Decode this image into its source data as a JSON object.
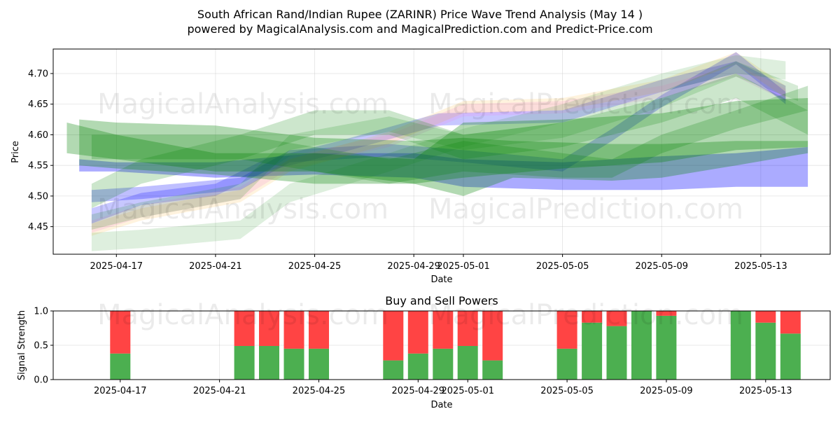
{
  "figure": {
    "title_line1": "South African Rand/Indian Rupee (ZARINR) Price Wave Trend Analysis (May 14 )",
    "title_line2": "powered by MagicalAnalysis.com and MagicalPrediction.com and Predict-Price.com",
    "watermarks": [
      "MagicalAnalysis.com",
      "MagicalPrediction.com"
    ]
  },
  "chart_data": [
    {
      "type": "area",
      "title": "",
      "xlabel": "Date",
      "ylabel": "Price",
      "xlim": [
        "2025-04-15",
        "2025-05-16"
      ],
      "ylim": [
        4.405,
        4.74
      ],
      "x_ticks": [
        "2025-04-17",
        "2025-04-21",
        "2025-04-25",
        "2025-04-29",
        "2025-05-01",
        "2025-05-05",
        "2025-05-09",
        "2025-05-13"
      ],
      "y_ticks": [
        4.45,
        4.5,
        4.55,
        4.6,
        4.65,
        4.7
      ],
      "grid": true,
      "series": [
        {
          "color": "#0000ff",
          "opacity": 0.33,
          "points": [
            [
              "2025-04-15.5",
              4.56,
              4.54
            ],
            [
              "2025-04-17",
              4.555,
              4.54
            ],
            [
              "2025-04-21",
              4.555,
              4.53
            ],
            [
              "2025-04-25",
              4.57,
              4.535
            ],
            [
              "2025-04-29",
              4.57,
              4.53
            ],
            [
              "2025-05-01",
              4.56,
              4.515
            ],
            [
              "2025-05-05",
              4.555,
              4.51
            ],
            [
              "2025-05-09",
              4.565,
              4.51
            ],
            [
              "2025-05-12",
              4.57,
              4.515
            ],
            [
              "2025-05-14.9",
              4.58,
              4.515
            ]
          ]
        },
        {
          "color": "#0000ff",
          "opacity": 0.22,
          "points": [
            [
              "2025-04-16",
              4.48,
              4.455
            ],
            [
              "2025-04-18",
              4.505,
              4.485
            ],
            [
              "2025-04-21",
              4.52,
              4.5
            ],
            [
              "2025-04-23",
              4.56,
              4.54
            ],
            [
              "2025-04-26",
              4.59,
              4.57
            ],
            [
              "2025-04-30",
              4.635,
              4.615
            ],
            [
              "2025-05-05",
              4.64,
              4.62
            ],
            [
              "2025-05-09",
              4.69,
              4.67
            ],
            [
              "2025-05-12",
              4.72,
              4.7
            ],
            [
              "2025-05-14",
              4.68,
              4.655
            ]
          ]
        },
        {
          "color": "#0000ff",
          "opacity": 0.25,
          "points": [
            [
              "2025-04-16",
              4.51,
              4.49
            ],
            [
              "2025-04-18",
              4.515,
              4.495
            ],
            [
              "2025-04-22",
              4.53,
              4.51
            ],
            [
              "2025-04-24",
              4.575,
              4.555
            ],
            [
              "2025-04-28",
              4.585,
              4.565
            ],
            [
              "2025-05-01",
              4.575,
              4.555
            ],
            [
              "2025-05-05",
              4.56,
              4.54
            ],
            [
              "2025-05-07",
              4.61,
              4.59
            ],
            [
              "2025-05-09",
              4.665,
              4.645
            ],
            [
              "2025-05-12",
              4.735,
              4.715
            ],
            [
              "2025-05-14",
              4.67,
              4.65
            ]
          ]
        },
        {
          "color": "#ee82ee",
          "opacity": 0.2,
          "points": [
            [
              "2025-04-16",
              4.46,
              4.44
            ],
            [
              "2025-04-18",
              4.485,
              4.465
            ],
            [
              "2025-04-22",
              4.515,
              4.495
            ],
            [
              "2025-04-24",
              4.565,
              4.545
            ],
            [
              "2025-04-28",
              4.6,
              4.58
            ],
            [
              "2025-05-01",
              4.65,
              4.63
            ],
            [
              "2025-05-05",
              4.655,
              4.635
            ],
            [
              "2025-05-09",
              4.68,
              4.66
            ],
            [
              "2025-05-12",
              4.715,
              4.695
            ],
            [
              "2025-05-14",
              4.675,
              4.655
            ]
          ]
        },
        {
          "color": "#ffa500",
          "opacity": 0.13,
          "points": [
            [
              "2025-04-16",
              4.455,
              4.435
            ],
            [
              "2025-04-18",
              4.48,
              4.46
            ],
            [
              "2025-04-22",
              4.51,
              4.49
            ],
            [
              "2025-04-24",
              4.56,
              4.54
            ],
            [
              "2025-04-28",
              4.605,
              4.585
            ],
            [
              "2025-05-01",
              4.655,
              4.635
            ],
            [
              "2025-05-05",
              4.66,
              4.64
            ],
            [
              "2025-05-09",
              4.69,
              4.67
            ],
            [
              "2025-05-12",
              4.735,
              4.715
            ],
            [
              "2025-05-14",
              4.68,
              4.66
            ]
          ]
        },
        {
          "color": "#008000",
          "opacity": 0.3,
          "points": [
            [
              "2025-04-15.5",
              4.625,
              4.55
            ],
            [
              "2025-04-17",
              4.62,
              4.545
            ],
            [
              "2025-04-21",
              4.615,
              4.535
            ],
            [
              "2025-04-25",
              4.595,
              4.52
            ],
            [
              "2025-04-29",
              4.59,
              4.52
            ],
            [
              "2025-05-01",
              4.595,
              4.5
            ],
            [
              "2025-05-03",
              4.59,
              4.53
            ],
            [
              "2025-05-07",
              4.585,
              4.525
            ],
            [
              "2025-05-09",
              4.585,
              4.53
            ],
            [
              "2025-05-12",
              4.59,
              4.55
            ],
            [
              "2025-05-14.9",
              4.59,
              4.57
            ]
          ]
        },
        {
          "color": "#008000",
          "opacity": 0.3,
          "points": [
            [
              "2025-04-15",
              4.62,
              4.57
            ],
            [
              "2025-04-17",
              4.6,
              4.56
            ],
            [
              "2025-04-21",
              4.57,
              4.54
            ],
            [
              "2025-04-25",
              4.57,
              4.54
            ],
            [
              "2025-04-29",
              4.56,
              4.52
            ],
            [
              "2025-05-01",
              4.62,
              4.53
            ],
            [
              "2025-05-05",
              4.625,
              4.545
            ],
            [
              "2025-05-09",
              4.635,
              4.555
            ],
            [
              "2025-05-12",
              4.655,
              4.575
            ],
            [
              "2025-05-14.9",
              4.66,
              4.58
            ]
          ]
        },
        {
          "color": "#008000",
          "opacity": 0.13,
          "points": [
            [
              "2025-04-16",
              4.44,
              4.41
            ],
            [
              "2025-04-18",
              4.445,
              4.415
            ],
            [
              "2025-04-22",
              4.46,
              4.43
            ],
            [
              "2025-04-24",
              4.52,
              4.49
            ],
            [
              "2025-04-28",
              4.57,
              4.54
            ],
            [
              "2025-05-01",
              4.61,
              4.58
            ],
            [
              "2025-05-05",
              4.65,
              4.62
            ],
            [
              "2025-05-09",
              4.7,
              4.67
            ],
            [
              "2025-05-12",
              4.73,
              4.7
            ],
            [
              "2025-05-14",
              4.72,
              4.69
            ]
          ]
        },
        {
          "color": "#008000",
          "opacity": 0.16,
          "points": [
            [
              "2025-04-16",
              4.47,
              4.445
            ],
            [
              "2025-04-18",
              4.49,
              4.465
            ],
            [
              "2025-04-22",
              4.52,
              4.495
            ],
            [
              "2025-04-24",
              4.6,
              4.575
            ],
            [
              "2025-04-28",
              4.63,
              4.605
            ],
            [
              "2025-05-01",
              4.6,
              4.575
            ],
            [
              "2025-05-05",
              4.62,
              4.595
            ],
            [
              "2025-05-09",
              4.67,
              4.645
            ],
            [
              "2025-05-12",
              4.72,
              4.695
            ],
            [
              "2025-05-14.5",
              4.68,
              4.655
            ]
          ]
        },
        {
          "color": "#008000",
          "opacity": 0.22,
          "points": [
            [
              "2025-04-16",
              4.6,
              4.56
            ],
            [
              "2025-04-18",
              4.6,
              4.56
            ],
            [
              "2025-04-22",
              4.6,
              4.56
            ],
            [
              "2025-04-25",
              4.58,
              4.54
            ],
            [
              "2025-04-28",
              4.56,
              4.52
            ],
            [
              "2025-05-01",
              4.59,
              4.54
            ],
            [
              "2025-05-05",
              4.57,
              4.53
            ],
            [
              "2025-05-07",
              4.56,
              4.53
            ],
            [
              "2025-05-09",
              4.6,
              4.57
            ],
            [
              "2025-05-12",
              4.64,
              4.61
            ],
            [
              "2025-05-14.9",
              4.68,
              4.64
            ]
          ]
        },
        {
          "color": "#008000",
          "opacity": 0.2,
          "points": [
            [
              "2025-04-16",
              4.52,
              4.48
            ],
            [
              "2025-04-18",
              4.56,
              4.52
            ],
            [
              "2025-04-22",
              4.6,
              4.56
            ],
            [
              "2025-04-25",
              4.64,
              4.6
            ],
            [
              "2025-04-28",
              4.64,
              4.6
            ],
            [
              "2025-05-01",
              4.6,
              4.56
            ],
            [
              "2025-05-05",
              4.62,
              4.58
            ],
            [
              "2025-05-09",
              4.66,
              4.62
            ],
            [
              "2025-05-12",
              4.7,
              4.66
            ],
            [
              "2025-05-14.9",
              4.64,
              4.6
            ]
          ]
        }
      ]
    },
    {
      "type": "bar",
      "title": "Buy and Sell Powers",
      "xlabel": "Date",
      "ylabel": "Signal Strength",
      "ylim": [
        0,
        1.0
      ],
      "y_ticks": [
        "0.0",
        "0.5",
        "1.0"
      ],
      "x_ticks": [
        "2025-04-17",
        "2025-04-21",
        "2025-04-25",
        "2025-04-29",
        "2025-05-01",
        "2025-05-05",
        "2025-05-09",
        "2025-05-13"
      ],
      "grid": true,
      "buy_color": "#4caf50",
      "sell_color": "#ff4444",
      "dates": [
        "2025-04-17",
        "2025-04-22",
        "2025-04-23",
        "2025-04-24",
        "2025-04-25",
        "2025-04-28",
        "2025-04-29",
        "2025-04-30",
        "2025-05-01",
        "2025-05-02",
        "2025-05-05",
        "2025-05-06",
        "2025-05-07",
        "2025-05-08",
        "2025-05-09",
        "2025-05-12",
        "2025-05-13",
        "2025-05-14"
      ],
      "series": [
        {
          "name": "buy",
          "values": [
            0.38,
            0.49,
            0.49,
            0.45,
            0.45,
            0.28,
            0.38,
            0.45,
            0.49,
            0.28,
            0.45,
            0.83,
            0.78,
            1.0,
            0.93,
            1.0,
            0.83,
            0.67
          ]
        },
        {
          "name": "sell",
          "values": [
            0.62,
            0.51,
            0.51,
            0.55,
            0.55,
            0.72,
            0.62,
            0.55,
            0.51,
            0.72,
            0.55,
            0.17,
            0.22,
            0.0,
            0.07,
            0.0,
            0.17,
            0.33
          ]
        }
      ]
    }
  ]
}
